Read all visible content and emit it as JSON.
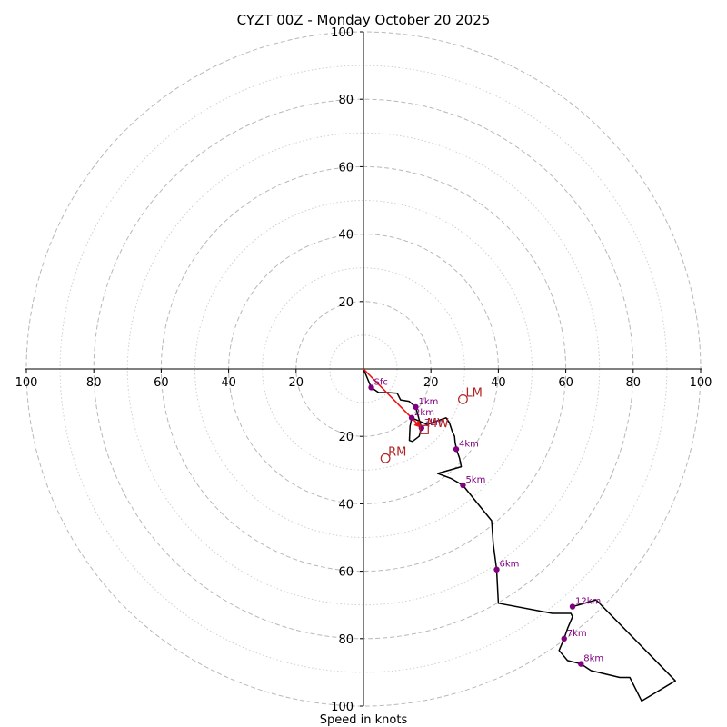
{
  "chart_data": {
    "type": "hodograph",
    "title": "CYZT 00Z - Monday October 20 2025",
    "xlabel": "Speed in knots",
    "units": "knots",
    "range": [
      -100,
      100
    ],
    "x_tick_labels": [
      "100",
      "80",
      "60",
      "40",
      "20",
      "20",
      "40",
      "60",
      "80",
      "100"
    ],
    "y_tick_labels": [
      "100",
      "80",
      "60",
      "40",
      "20",
      "20",
      "40",
      "60",
      "80",
      "100"
    ],
    "rings_major": [
      20,
      40,
      60,
      80,
      100
    ],
    "rings_minor": [
      10,
      30,
      50,
      70,
      90
    ],
    "hodograph_trace": [
      [
        0,
        0
      ],
      [
        2.3,
        -5.5
      ],
      [
        4.5,
        -7.0
      ],
      [
        7,
        -7.0
      ],
      [
        10,
        -7.2
      ],
      [
        11,
        -9.2
      ],
      [
        13.5,
        -9.6
      ],
      [
        15.5,
        -11.3
      ],
      [
        16.5,
        -15.0
      ],
      [
        17.2,
        -17.5
      ],
      [
        16.5,
        -20
      ],
      [
        14.5,
        -21.5
      ],
      [
        13.6,
        -21.2
      ],
      [
        13.8,
        -17.0
      ],
      [
        14.3,
        -14.5
      ],
      [
        17,
        -15.7
      ],
      [
        19,
        -16.5
      ],
      [
        21,
        -15.7
      ],
      [
        24.5,
        -14.5
      ],
      [
        25.5,
        -16
      ],
      [
        26.3,
        -18.5
      ],
      [
        27,
        -20
      ],
      [
        27.2,
        -22
      ],
      [
        27.8,
        -24.5
      ],
      [
        28.5,
        -26.5
      ],
      [
        29,
        -29
      ],
      [
        22,
        -31
      ],
      [
        26,
        -32.5
      ],
      [
        29.5,
        -34.5
      ],
      [
        33.5,
        -39.5
      ],
      [
        38,
        -45
      ],
      [
        38.5,
        -52
      ],
      [
        39.5,
        -59.5
      ],
      [
        40,
        -69.5
      ],
      [
        56,
        -72.5
      ],
      [
        61.5,
        -72.5
      ],
      [
        62,
        -73.5
      ],
      [
        60.5,
        -77
      ],
      [
        59.5,
        -80
      ],
      [
        58,
        -83.5
      ],
      [
        60.5,
        -86.5
      ],
      [
        64.5,
        -87.5
      ],
      [
        67.5,
        -89.5
      ],
      [
        76,
        -91.5
      ],
      [
        79,
        -91.5
      ],
      [
        82.5,
        -98.5
      ],
      [
        92.5,
        -92.5
      ],
      [
        69,
        -68.5
      ],
      [
        62,
        -70.5
      ]
    ],
    "height_markers": [
      {
        "label": "Sfc",
        "u": 2.3,
        "v": -5.5
      },
      {
        "label": "1km",
        "u": 15.5,
        "v": -11.3
      },
      {
        "label": "2km",
        "u": 14.3,
        "v": -14.5
      },
      {
        "label": "3km",
        "u": 17.2,
        "v": -17.5
      },
      {
        "label": "4km",
        "u": 27.5,
        "v": -23.8
      },
      {
        "label": "5km",
        "u": 29.5,
        "v": -34.5
      },
      {
        "label": "6km",
        "u": 39.5,
        "v": -59.5
      },
      {
        "label": "7km",
        "u": 59.5,
        "v": -80
      },
      {
        "label": "8km",
        "u": 64.5,
        "v": -87.5
      },
      {
        "label": "12km",
        "u": 62,
        "v": -70.5
      }
    ],
    "storm_motions": [
      {
        "label": "LM",
        "u": 29.5,
        "v": -9.0,
        "symbol": "circle"
      },
      {
        "label": "RM",
        "u": 6.5,
        "v": -26.5,
        "symbol": "circle"
      },
      {
        "label": "MW",
        "u": 18.0,
        "v": -18.0,
        "symbol": "square"
      }
    ],
    "shear_vector": {
      "from": [
        0,
        0
      ],
      "to": [
        17.2,
        -17.5
      ]
    },
    "colors": {
      "trace": "#000000",
      "marker": "#800080",
      "storm": "#b22222",
      "shear": "#ee1111",
      "ring_major": "#b8b8b8",
      "ring_minor": "#cfcfcf"
    }
  }
}
